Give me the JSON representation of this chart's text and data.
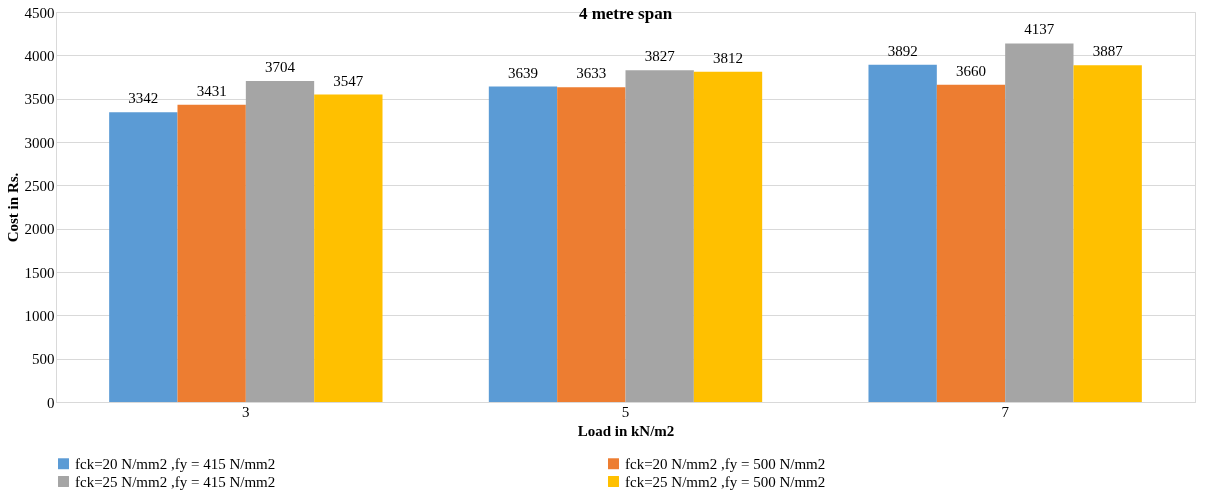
{
  "chart_data": {
    "type": "bar",
    "title": "4 metre span",
    "xlabel": "Load in kN/m2",
    "ylabel": "Cost in Rs.",
    "categories": [
      "3",
      "5",
      "7"
    ],
    "series": [
      {
        "name": "fck=20 N/mm2 ,fy = 415 N/mm2",
        "color": "#5b9bd5",
        "values": [
          3342,
          3639,
          3892
        ]
      },
      {
        "name": "fck=20 N/mm2 ,fy = 500 N/mm2",
        "color": "#ed7d31",
        "values": [
          3431,
          3633,
          3660
        ]
      },
      {
        "name": "fck=25 N/mm2 ,fy = 415 N/mm2",
        "color": "#a5a5a5",
        "values": [
          3704,
          3827,
          4137
        ]
      },
      {
        "name": "fck=25 N/mm2 ,fy = 500 N/mm2",
        "color": "#ffc000",
        "values": [
          3547,
          3812,
          3887
        ]
      }
    ],
    "ylim": [
      0,
      4500
    ],
    "yticks": [
      0,
      500,
      1000,
      1500,
      2000,
      2500,
      3000,
      3500,
      4000,
      4500
    ],
    "grid": "y",
    "legend": "bottom",
    "data_labels": true
  }
}
